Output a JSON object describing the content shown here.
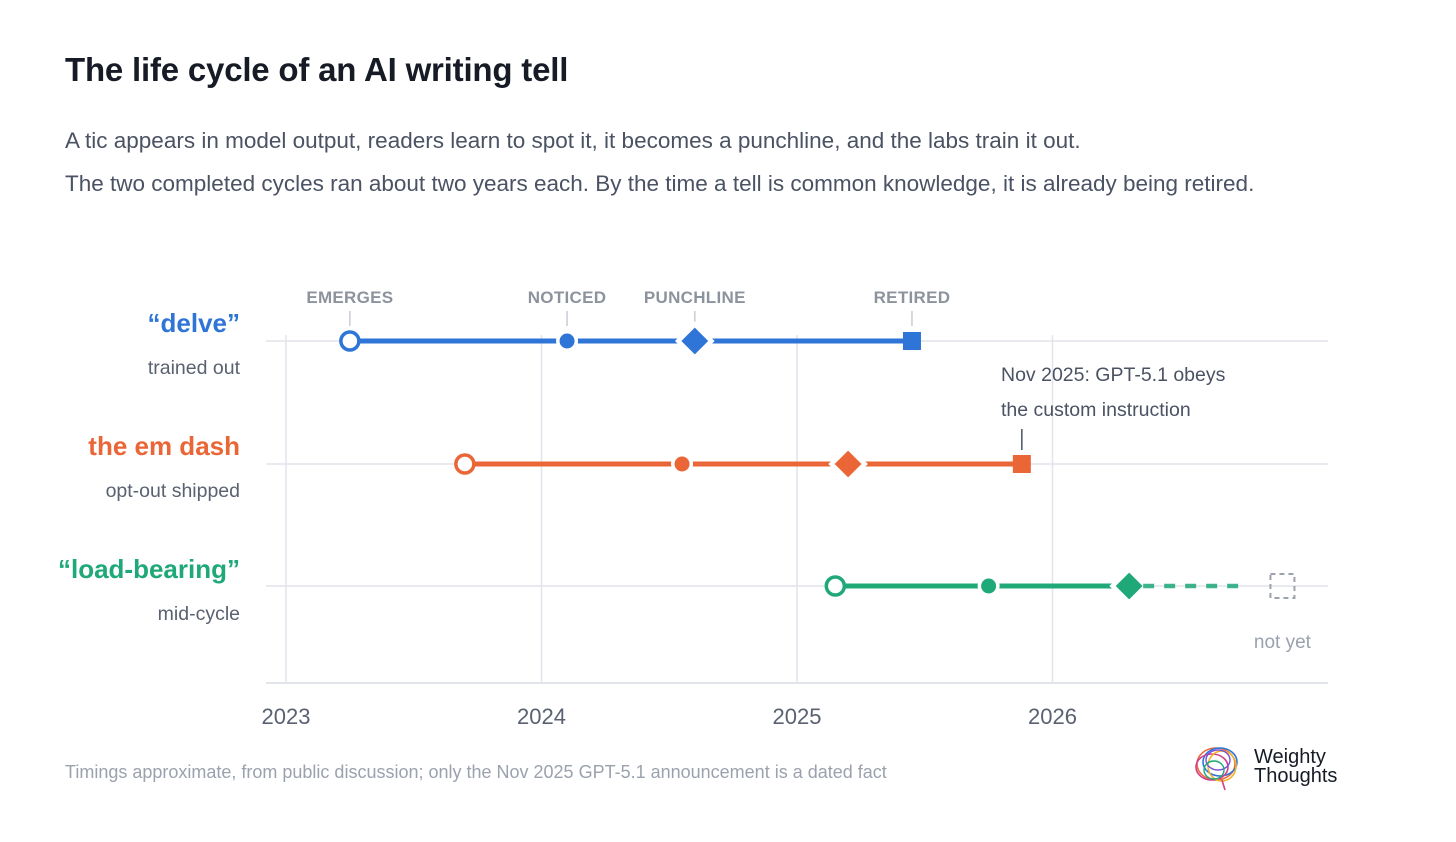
{
  "header": {
    "title": "The life cycle of an AI writing tell",
    "subtitle_line1": "A tic appears in model output, readers learn to spot it, it becomes a punchline, and the labs train it out.",
    "subtitle_line2": "The two completed cycles ran about two years each. By the time a tell is common knowledge, it is already being retired."
  },
  "chart_data": {
    "type": "timeline",
    "x_axis": {
      "ticks": [
        "2023",
        "2024",
        "2025",
        "2026"
      ],
      "range": [
        2023.0,
        2027.1
      ],
      "grid": true
    },
    "stage_labels": [
      "EMERGES",
      "NOTICED",
      "PUNCHLINE",
      "RETIRED"
    ],
    "series": [
      {
        "name": "“delve”",
        "status": "trained out",
        "color": "#2f74d7",
        "emerges": 2023.25,
        "noticed": 2024.1,
        "punchline": 2024.6,
        "retired": 2025.45
      },
      {
        "name": "the em dash",
        "status": "opt-out shipped",
        "color": "#ea6637",
        "emerges": 2023.7,
        "noticed": 2024.55,
        "punchline": 2025.2,
        "retired": 2025.88
      },
      {
        "name": "“load-bearing”",
        "status": "mid-cycle",
        "color": "#1fa878",
        "emerges": 2025.15,
        "noticed": 2025.75,
        "punchline": 2026.3,
        "retired": null,
        "retired_projection": 2026.9,
        "retired_label": "not yet"
      }
    ],
    "annotation": {
      "line1": "Nov 2025: GPT-5.1 obeys",
      "line2": "the custom instruction",
      "series": "the em dash",
      "x": 2025.88
    },
    "colors": {
      "grid": "#e1e4ea",
      "axis_text": "#5a6170",
      "stage_text": "#8d939d",
      "status_text": "#5a6170",
      "projection": "#9ba2ae"
    }
  },
  "footnote": "Timings approximate, from public discussion; only the Nov 2025 GPT-5.1 announcement is a dated fact",
  "brand": {
    "line1": "Weighty",
    "line2": "Thoughts"
  }
}
